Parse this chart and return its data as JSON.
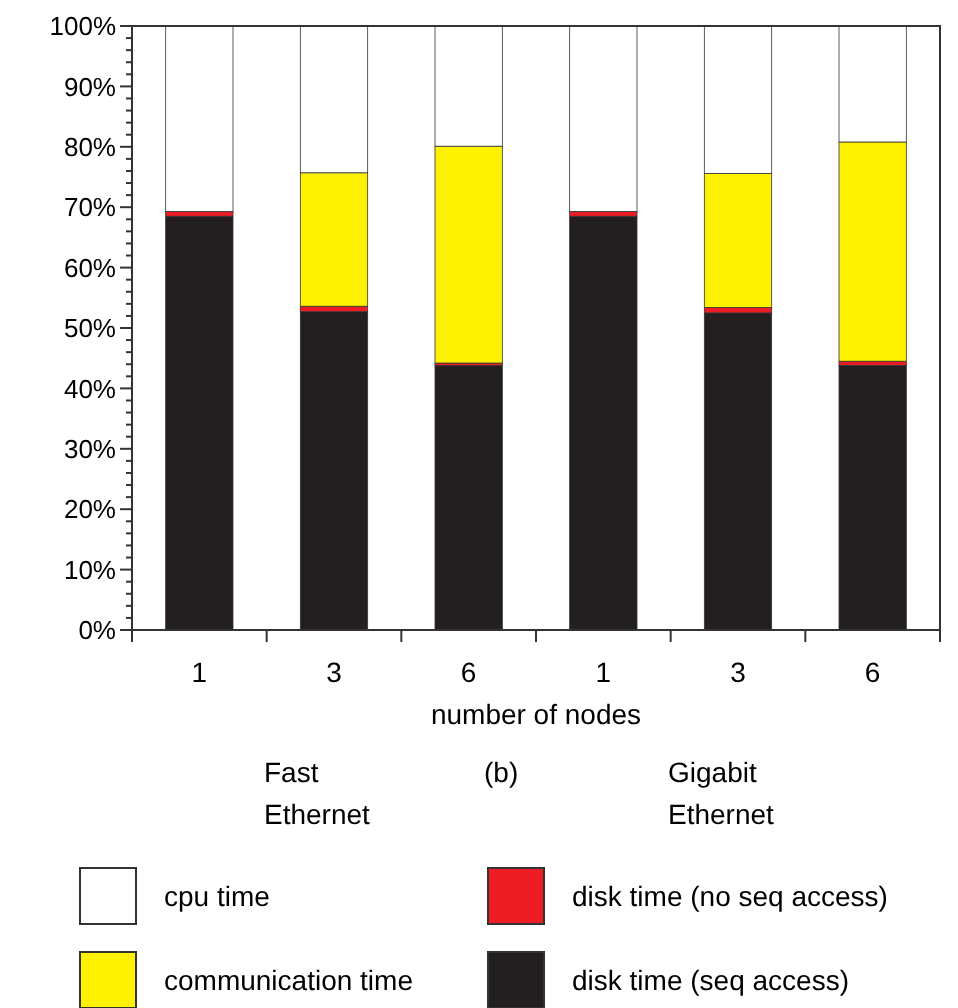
{
  "chart_data": {
    "type": "bar",
    "stacked": true,
    "categories": [
      "1",
      "3",
      "6",
      "1",
      "3",
      "6"
    ],
    "xlabel": "number of nodes",
    "annotations": [
      "Fast Ethernet",
      "(b)",
      "Gigabit Ethernet"
    ],
    "series": [
      {
        "name": "disk time (seq access)",
        "color": "#231f20",
        "values": [
          68.5,
          52.7,
          43.8,
          68.5,
          52.5,
          43.8
        ]
      },
      {
        "name": "disk time (no seq access)",
        "color": "#ed1c24",
        "values": [
          0.8,
          0.9,
          0.4,
          0.8,
          0.9,
          0.7
        ]
      },
      {
        "name": "communication time",
        "color": "#fff200",
        "values": [
          0,
          22.1,
          35.9,
          0,
          22.2,
          36.3
        ]
      },
      {
        "name": "cpu time",
        "color": "#ffffff",
        "values": [
          30.7,
          24.3,
          19.9,
          30.7,
          24.4,
          19.2
        ]
      }
    ],
    "ylim": [
      0,
      100
    ],
    "yticks": [
      {
        "value": 0,
        "label": "0%"
      },
      {
        "value": 2,
        "label": null
      },
      {
        "value": 4,
        "label": null
      },
      {
        "value": 6,
        "label": null
      },
      {
        "value": 8,
        "label": null
      },
      {
        "value": 10,
        "label": "10%"
      },
      {
        "value": 12,
        "label": null
      },
      {
        "value": 14,
        "label": null
      },
      {
        "value": 16,
        "label": null
      },
      {
        "value": 18,
        "label": null
      },
      {
        "value": 20,
        "label": "20%"
      },
      {
        "value": 22,
        "label": null
      },
      {
        "value": 24,
        "label": null
      },
      {
        "value": 26,
        "label": null
      },
      {
        "value": 28,
        "label": null
      },
      {
        "value": 30,
        "label": "30%"
      },
      {
        "value": 32,
        "label": null
      },
      {
        "value": 34,
        "label": null
      },
      {
        "value": 36,
        "label": null
      },
      {
        "value": 38,
        "label": null
      },
      {
        "value": 40,
        "label": "40%"
      },
      {
        "value": 42,
        "label": null
      },
      {
        "value": 44,
        "label": null
      },
      {
        "value": 46,
        "label": null
      },
      {
        "value": 48,
        "label": null
      },
      {
        "value": 50,
        "label": "50%"
      },
      {
        "value": 52,
        "label": null
      },
      {
        "value": 54,
        "label": null
      },
      {
        "value": 56,
        "label": null
      },
      {
        "value": 58,
        "label": null
      },
      {
        "value": 60,
        "label": "60%"
      },
      {
        "value": 62,
        "label": null
      },
      {
        "value": 64,
        "label": null
      },
      {
        "value": 66,
        "label": null
      },
      {
        "value": 68,
        "label": null
      },
      {
        "value": 70,
        "label": "70%"
      },
      {
        "value": 72,
        "label": null
      },
      {
        "value": 74,
        "label": null
      },
      {
        "value": 76,
        "label": null
      },
      {
        "value": 78,
        "label": null
      },
      {
        "value": 80,
        "label": "80%"
      },
      {
        "value": 82,
        "label": null
      },
      {
        "value": 84,
        "label": null
      },
      {
        "value": 86,
        "label": null
      },
      {
        "value": 88,
        "label": null
      },
      {
        "value": 90,
        "label": "90%"
      },
      {
        "value": 92,
        "label": null
      },
      {
        "value": 94,
        "label": null
      },
      {
        "value": 96,
        "label": null
      },
      {
        "value": 98,
        "label": null
      },
      {
        "value": 100,
        "label": "100%"
      }
    ],
    "legend": "bottom"
  }
}
